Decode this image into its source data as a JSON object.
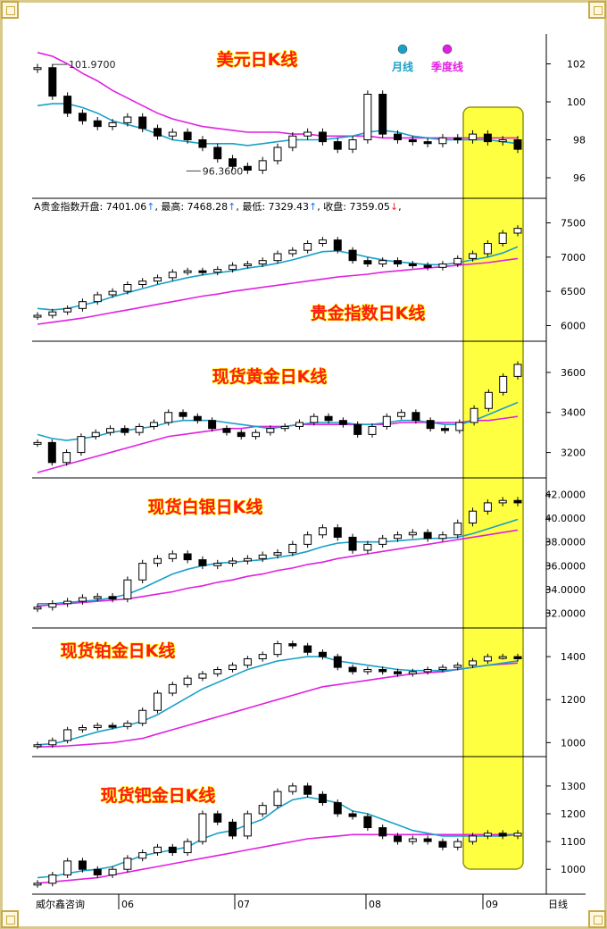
{
  "chart_data": [
    {
      "type": "candlestick",
      "title": "美元日K线",
      "legend": [
        {
          "label": "月线",
          "color": "#1aa0c8"
        },
        {
          "label": "季度线",
          "color": "#e020e0"
        }
      ],
      "y_ticks": [
        "96",
        "98",
        "100",
        "102"
      ],
      "ylim": [
        95.2,
        103.2
      ],
      "annotations": [
        {
          "text": "101.9700",
          "x": 0.04,
          "y": 101.97
        },
        {
          "text": "96.3600",
          "x": 0.3,
          "y": 96.36
        }
      ],
      "closes": [
        101.8,
        100.3,
        99.4,
        99.0,
        98.7,
        98.9,
        99.2,
        98.6,
        98.2,
        98.4,
        98.0,
        97.6,
        97.0,
        96.6,
        96.4,
        96.9,
        97.6,
        98.2,
        98.4,
        97.9,
        97.5,
        98.0,
        100.4,
        98.3,
        98.0,
        97.9,
        97.8,
        98.1,
        98.0,
        98.3,
        97.9,
        98.0,
        97.5
      ],
      "ma_month": [
        99.8,
        99.9,
        99.9,
        99.7,
        99.4,
        99.0,
        98.8,
        98.6,
        98.3,
        98.0,
        97.9,
        97.8,
        97.8,
        97.8,
        97.7,
        97.8,
        97.9,
        98.0,
        98.0,
        98.0,
        98.1,
        98.2,
        98.4,
        98.5,
        98.4,
        98.2,
        98.1,
        98.0,
        98.0,
        98.0,
        98.0,
        97.9,
        97.8
      ],
      "ma_quarter": [
        102.6,
        102.4,
        102.0,
        101.5,
        101.1,
        100.6,
        100.2,
        99.8,
        99.4,
        99.1,
        98.9,
        98.7,
        98.6,
        98.5,
        98.4,
        98.4,
        98.4,
        98.3,
        98.3,
        98.2,
        98.2,
        98.2,
        98.2,
        98.1,
        98.1,
        98.1,
        98.1,
        98.1,
        98.1,
        98.1,
        98.1,
        98.1,
        98.1
      ]
    },
    {
      "type": "candlestick",
      "title": "贵金指数日K线",
      "info_line": {
        "name": "A贵金指数",
        "open_label": "开盘:",
        "open": "7401.06",
        "high_label": "最高:",
        "high": "7468.28",
        "low_label": "最低:",
        "low": "7329.43",
        "close_label": "收盘:",
        "close": "7359.05"
      },
      "y_ticks": [
        "6000",
        "6500",
        "7000",
        "7500"
      ],
      "ylim": [
        5850,
        7650
      ],
      "closes": [
        6150,
        6200,
        6250,
        6350,
        6450,
        6500,
        6600,
        6650,
        6700,
        6780,
        6800,
        6780,
        6820,
        6880,
        6900,
        6950,
        7050,
        7100,
        7200,
        7250,
        7100,
        6950,
        6900,
        6950,
        6900,
        6880,
        6850,
        6900,
        6980,
        7050,
        7200,
        7350,
        7420
      ],
      "ma_month": [
        6250,
        6230,
        6250,
        6300,
        6350,
        6420,
        6480,
        6540,
        6600,
        6650,
        6700,
        6740,
        6770,
        6800,
        6840,
        6870,
        6910,
        6960,
        7020,
        7080,
        7090,
        7050,
        7000,
        6960,
        6930,
        6910,
        6890,
        6890,
        6920,
        6960,
        7000,
        7060,
        7150
      ],
      "ma_quarter": [
        6020,
        6050,
        6080,
        6110,
        6150,
        6190,
        6230,
        6270,
        6310,
        6350,
        6390,
        6430,
        6460,
        6500,
        6530,
        6560,
        6590,
        6620,
        6650,
        6680,
        6710,
        6730,
        6750,
        6780,
        6800,
        6820,
        6840,
        6860,
        6880,
        6900,
        6920,
        6950,
        6980
      ]
    },
    {
      "type": "candlestick",
      "title": "现货黄金日K线",
      "y_ticks": [
        "3200",
        "3400",
        "3600"
      ],
      "ylim": [
        3100,
        3720
      ],
      "closes": [
        3250,
        3150,
        3200,
        3280,
        3300,
        3320,
        3300,
        3330,
        3350,
        3400,
        3380,
        3360,
        3320,
        3300,
        3280,
        3300,
        3320,
        3330,
        3350,
        3380,
        3360,
        3340,
        3290,
        3330,
        3380,
        3400,
        3360,
        3320,
        3310,
        3350,
        3420,
        3500,
        3580,
        3640
      ],
      "ma_month": [
        3290,
        3270,
        3260,
        3270,
        3280,
        3300,
        3310,
        3320,
        3330,
        3350,
        3360,
        3360,
        3360,
        3350,
        3340,
        3330,
        3320,
        3330,
        3340,
        3350,
        3350,
        3350,
        3340,
        3340,
        3350,
        3360,
        3360,
        3350,
        3340,
        3340,
        3360,
        3390,
        3420,
        3450
      ],
      "ma_quarter": [
        3100,
        3120,
        3140,
        3160,
        3180,
        3200,
        3220,
        3240,
        3260,
        3280,
        3290,
        3300,
        3310,
        3320,
        3320,
        3330,
        3330,
        3330,
        3340,
        3340,
        3340,
        3340,
        3340,
        3340,
        3340,
        3350,
        3350,
        3350,
        3350,
        3350,
        3360,
        3360,
        3370,
        3380
      ]
    },
    {
      "type": "candlestick",
      "title": "现货白银日K线",
      "y_ticks": [
        "32.0000",
        "34.0000",
        "36.0000",
        "38.0000",
        "40.0000",
        "42.0000"
      ],
      "ylim": [
        31.2,
        42.8
      ],
      "closes": [
        32.5,
        32.8,
        33.0,
        33.3,
        33.4,
        33.2,
        34.8,
        36.2,
        36.6,
        37.0,
        36.5,
        36.0,
        36.2,
        36.4,
        36.6,
        36.9,
        37.1,
        37.8,
        38.6,
        39.2,
        38.4,
        37.3,
        37.8,
        38.3,
        38.6,
        38.8,
        38.3,
        38.6,
        39.6,
        40.6,
        41.3,
        41.5,
        41.3
      ],
      "ma_month": [
        32.8,
        32.8,
        32.9,
        33.0,
        33.1,
        33.3,
        33.6,
        34.1,
        34.7,
        35.3,
        35.7,
        36.0,
        36.2,
        36.3,
        36.4,
        36.5,
        36.7,
        36.9,
        37.2,
        37.6,
        37.9,
        38.0,
        38.0,
        38.0,
        38.1,
        38.2,
        38.3,
        38.3,
        38.4,
        38.7,
        39.1,
        39.5,
        39.9
      ],
      "ma_quarter": [
        32.6,
        32.7,
        32.8,
        32.9,
        33.0,
        33.1,
        33.2,
        33.4,
        33.6,
        33.8,
        34.1,
        34.3,
        34.6,
        34.8,
        35.1,
        35.3,
        35.6,
        35.8,
        36.1,
        36.3,
        36.6,
        36.8,
        37.0,
        37.2,
        37.4,
        37.6,
        37.8,
        38.0,
        38.2,
        38.4,
        38.6,
        38.8,
        39.0
      ]
    },
    {
      "type": "candlestick",
      "title": "现货铂金日K线",
      "y_ticks": [
        "1000",
        "1200",
        "1400"
      ],
      "ylim": [
        960,
        1500
      ],
      "closes": [
        990,
        1010,
        1060,
        1070,
        1080,
        1075,
        1090,
        1150,
        1230,
        1270,
        1300,
        1320,
        1340,
        1360,
        1390,
        1410,
        1460,
        1450,
        1420,
        1400,
        1350,
        1330,
        1340,
        1330,
        1320,
        1330,
        1340,
        1350,
        1360,
        1380,
        1400,
        1400,
        1390
      ],
      "ma_month": [
        990,
        995,
        1010,
        1030,
        1050,
        1065,
        1080,
        1100,
        1130,
        1170,
        1210,
        1250,
        1280,
        1310,
        1340,
        1360,
        1380,
        1390,
        1400,
        1400,
        1380,
        1370,
        1360,
        1350,
        1340,
        1335,
        1335,
        1335,
        1340,
        1350,
        1360,
        1370,
        1380
      ],
      "ma_quarter": [
        980,
        982,
        985,
        990,
        995,
        1000,
        1010,
        1020,
        1040,
        1060,
        1080,
        1100,
        1120,
        1140,
        1160,
        1180,
        1200,
        1220,
        1240,
        1260,
        1270,
        1280,
        1290,
        1300,
        1310,
        1320,
        1325,
        1330,
        1340,
        1350,
        1360,
        1365,
        1370
      ]
    },
    {
      "type": "candlestick",
      "title": "现货钯金日K线",
      "y_ticks": [
        "1000",
        "1100",
        "1200",
        "1300"
      ],
      "ylim": [
        930,
        1380
      ],
      "closes": [
        950,
        980,
        1030,
        1000,
        980,
        1000,
        1040,
        1060,
        1080,
        1060,
        1100,
        1200,
        1170,
        1120,
        1200,
        1230,
        1280,
        1300,
        1270,
        1240,
        1200,
        1190,
        1150,
        1120,
        1100,
        1110,
        1100,
        1080,
        1100,
        1120,
        1130,
        1120,
        1130
      ],
      "ma_month": [
        970,
        975,
        985,
        995,
        1000,
        1010,
        1030,
        1050,
        1060,
        1070,
        1080,
        1110,
        1130,
        1140,
        1160,
        1180,
        1220,
        1250,
        1260,
        1250,
        1240,
        1210,
        1200,
        1180,
        1160,
        1140,
        1130,
        1120,
        1120,
        1120,
        1120,
        1120,
        1125
      ],
      "ma_quarter": [
        950,
        955,
        960,
        965,
        970,
        980,
        990,
        1000,
        1010,
        1020,
        1030,
        1040,
        1050,
        1060,
        1070,
        1080,
        1090,
        1100,
        1110,
        1115,
        1120,
        1125,
        1125,
        1125,
        1125,
        1125,
        1125,
        1125,
        1125,
        1125,
        1125,
        1125,
        1125
      ]
    }
  ],
  "x_axis": {
    "source_label": "威尔鑫咨询",
    "months": [
      "06",
      "07",
      "08",
      "09"
    ],
    "period_label": "日线"
  },
  "highlight_color": "#ffff33"
}
